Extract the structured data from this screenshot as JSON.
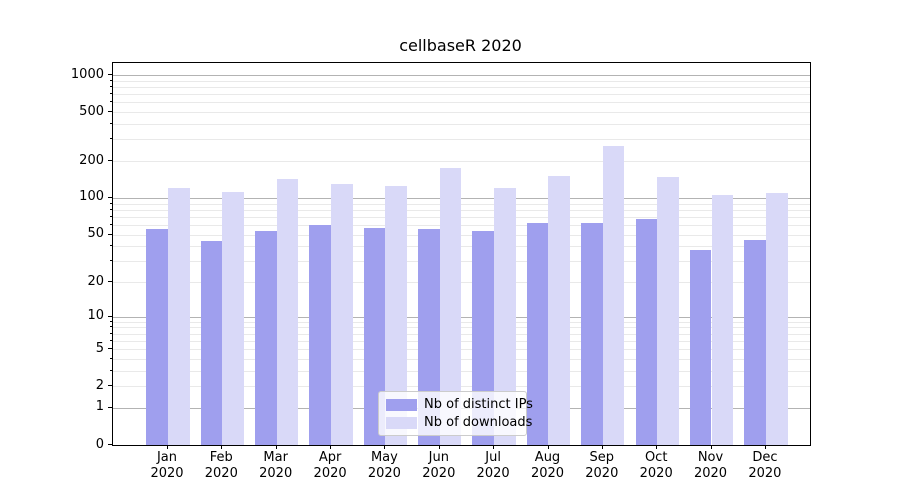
{
  "chart_data": {
    "type": "bar",
    "title": "cellbaseR 2020",
    "categories": [
      "Jan",
      "Feb",
      "Mar",
      "Apr",
      "May",
      "Jun",
      "Jul",
      "Aug",
      "Sep",
      "Oct",
      "Nov",
      "Dec"
    ],
    "category_year": "2020",
    "series": [
      {
        "name": "Nb of distinct IPs",
        "color": "#9f9fee",
        "values": [
          55,
          44,
          53,
          60,
          57,
          56,
          53,
          62,
          62,
          67,
          37,
          45
        ]
      },
      {
        "name": "Nb of downloads",
        "color": "#d9d9f8",
        "values": [
          120,
          111,
          142,
          130,
          125,
          176,
          120,
          151,
          265,
          149,
          105,
          110
        ]
      }
    ],
    "yscale": "log1p",
    "yticks": [
      1000,
      500,
      200,
      100,
      50,
      20,
      10,
      5,
      2,
      1,
      0
    ],
    "minor_yticks": [
      2,
      3,
      4,
      5,
      6,
      7,
      8,
      9,
      20,
      30,
      40,
      50,
      60,
      70,
      80,
      90,
      200,
      300,
      400,
      500,
      600,
      700,
      800,
      900
    ],
    "major_grid_values": [
      1,
      10,
      100,
      1000
    ],
    "ylim": [
      0,
      1240
    ],
    "xlabel": "",
    "ylabel": "",
    "grid": "horizontal major+minor",
    "legend_position": "inside lower-center"
  },
  "colors": {
    "background": "#ffffff",
    "axis": "#000000",
    "major_grid": "#b3b3b3",
    "minor_grid": "#e9e9e9",
    "legend_border": "#cccccc",
    "series_ips": "#9f9fee",
    "series_downloads": "#d9d9f8"
  }
}
